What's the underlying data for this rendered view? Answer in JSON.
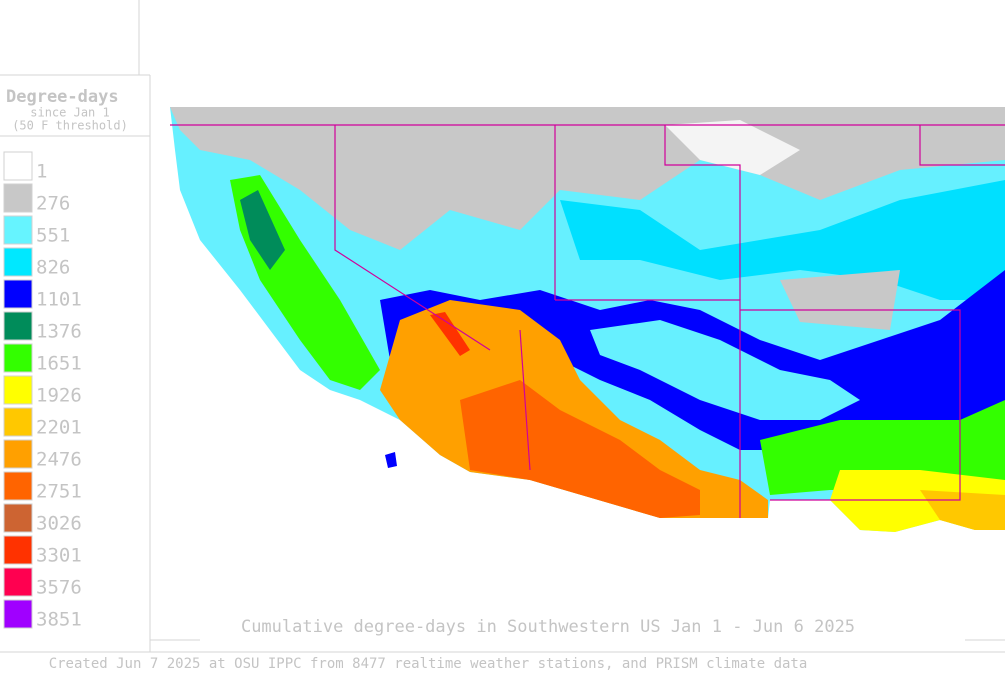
{
  "legend": {
    "title": "Degree-days",
    "subtitle": "since Jan 1",
    "threshold": "(50 F threshold)",
    "items": [
      {
        "label": "1",
        "color": "#ffffff"
      },
      {
        "label": "276",
        "color": "#c8c8c8"
      },
      {
        "label": "551",
        "color": "#66f4ff"
      },
      {
        "label": "826",
        "color": "#00e8ff"
      },
      {
        "label": "1101",
        "color": "#0000ff"
      },
      {
        "label": "1376",
        "color": "#008c5a"
      },
      {
        "label": "1651",
        "color": "#33ff00"
      },
      {
        "label": "1926",
        "color": "#ffff00"
      },
      {
        "label": "2201",
        "color": "#ffc800"
      },
      {
        "label": "2476",
        "color": "#ffa000"
      },
      {
        "label": "2751",
        "color": "#ff6400"
      },
      {
        "label": "3026",
        "color": "#cd6432"
      },
      {
        "label": "3301",
        "color": "#ff3200"
      },
      {
        "label": "3576",
        "color": "#ff0050"
      },
      {
        "label": "3851",
        "color": "#a000ff"
      }
    ]
  },
  "map": {
    "caption": "Cumulative degree-days in Southwestern US Jan 1 - Jun 6 2025"
  },
  "footer": "Created Jun 7 2025 at OSU IPPC from 8477 realtime weather stations, and PRISM climate data"
}
